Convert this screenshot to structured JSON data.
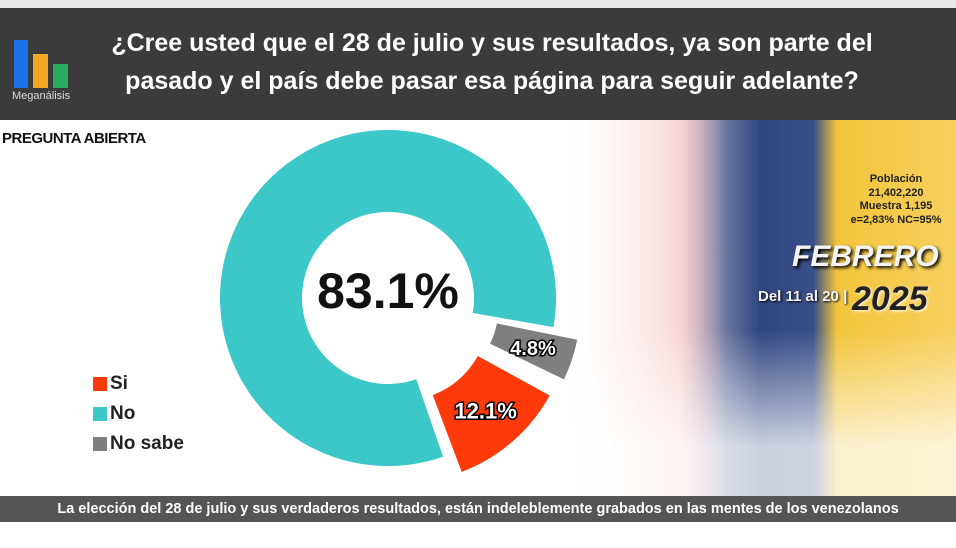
{
  "header": {
    "logo_text": "Meganálisis",
    "title_line1": "¿Cree usted que el 28 de julio y sus resultados, ya son parte del",
    "title_line2": "pasado y el país debe pasar esa página para seguir adelante?"
  },
  "subtitle": "PREGUNTA ABIERTA",
  "info": {
    "line1": "Población",
    "line2": "21,402,220",
    "line3": "Muestra 1,195",
    "line4": "e=2,83%  NC=95%"
  },
  "date": {
    "month": "FEBRERO",
    "range": "Del 11 al 20 |",
    "year": "2025"
  },
  "colors": {
    "si": "#ff3a0a",
    "no": "#3cc8c8",
    "no_sabe": "#7f7f7f",
    "header": "#3b3b3b",
    "footer": "#555555"
  },
  "chart_data": {
    "type": "pie",
    "variant": "donut",
    "categories": [
      "Si",
      "No",
      "No sabe"
    ],
    "values": [
      12.1,
      83.1,
      4.8
    ],
    "data_labels": [
      "12.1%",
      "83.1%",
      "4.8%"
    ],
    "center_label": "83.1%",
    "legend_position": "left"
  },
  "legend": [
    {
      "label": "Si"
    },
    {
      "label": "No"
    },
    {
      "label": "No sabe"
    }
  ],
  "footer": "La elección del 28 de julio y sus verdaderos resultados, están indeleblemente grabados en las mentes de los venezolanos"
}
